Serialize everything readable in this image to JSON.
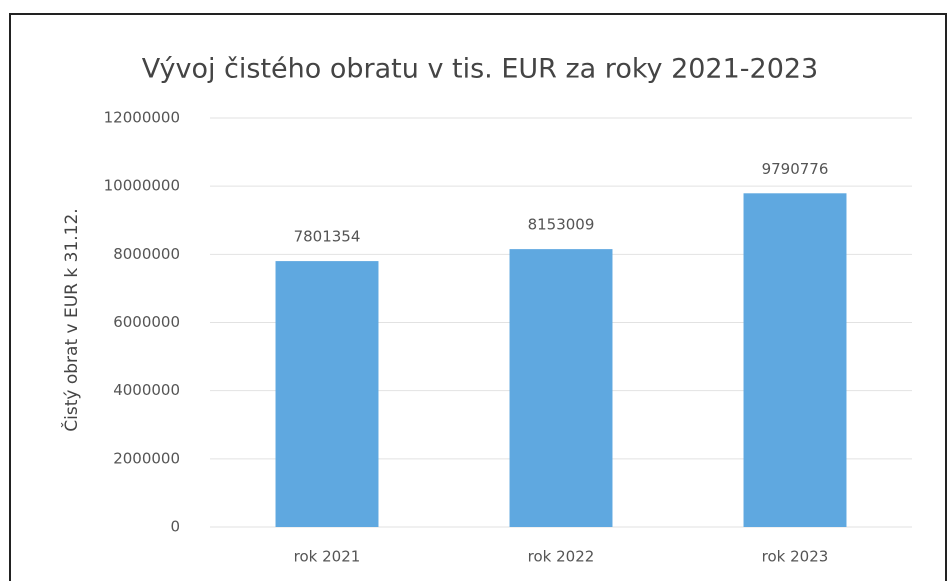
{
  "chart_data": {
    "type": "bar",
    "title": "Vývoj čistého obratu v tis. EUR za roky 2021-2023",
    "y_label": "Čistý obrat v EUR k 31.12.",
    "categories": [
      "rok 2021",
      "rok 2022",
      "rok 2023"
    ],
    "values": [
      7801354,
      8153009,
      9790776
    ],
    "color": "#5fa8e0",
    "ylim": [
      0,
      12000000
    ],
    "yticks": [
      0,
      2000000,
      4000000,
      6000000,
      8000000,
      10000000,
      12000000
    ],
    "grid": true
  }
}
